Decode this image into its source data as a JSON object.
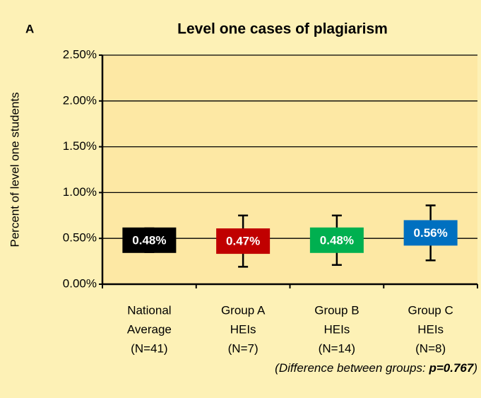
{
  "chart_data": {
    "type": "errorbar",
    "panel": "A",
    "title": "Level one cases of plagiarism",
    "ylabel": "Percent of level one students",
    "categories": [
      [
        "National",
        "Average",
        "(N=41)"
      ],
      [
        "Group A",
        "HEIs",
        "(N=7)"
      ],
      [
        "Group B",
        "HEIs",
        "(N=14)"
      ],
      [
        "Group C",
        "HEIs",
        "(N=8)"
      ]
    ],
    "values": [
      0.48,
      0.47,
      0.48,
      0.56
    ],
    "value_labels": [
      "0.48%",
      "0.47%",
      "0.48%",
      "0.56%"
    ],
    "errors": [
      0.13,
      0.28,
      0.27,
      0.3
    ],
    "colors": [
      "#000000",
      "#c00000",
      "#00b050",
      "#0070c0"
    ],
    "ylim": [
      0,
      2.5
    ],
    "yticks": [
      {
        "value": 0,
        "label": "0.00%"
      },
      {
        "value": 0.5,
        "label": "0.50%"
      },
      {
        "value": 1,
        "label": "1.00%"
      },
      {
        "value": 1.5,
        "label": "1.50%"
      },
      {
        "value": 2,
        "label": "2.00%"
      },
      {
        "value": 2.5,
        "label": "2.50%"
      }
    ],
    "grid": true,
    "annotation": [
      "(Difference between groups: ",
      "p=0.767",
      ")"
    ]
  }
}
